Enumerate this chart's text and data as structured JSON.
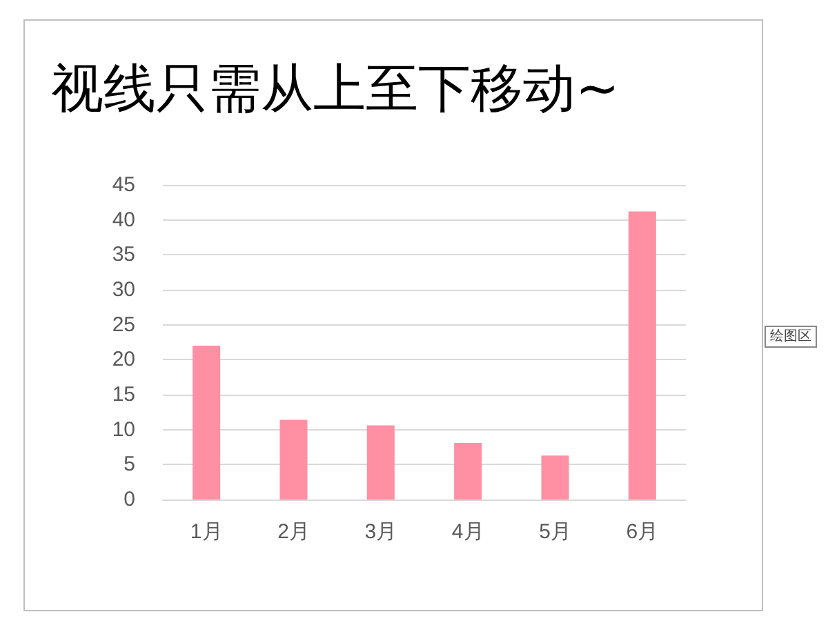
{
  "chart_data": {
    "type": "bar",
    "title": "视线只需从上至下移动~",
    "categories": [
      "1月",
      "2月",
      "3月",
      "4月",
      "5月",
      "6月"
    ],
    "values": [
      22.0,
      11.4,
      10.6,
      8.1,
      6.3,
      41.2
    ],
    "color": "#ff8fa3",
    "ylim": [
      0,
      45
    ],
    "yticks": [
      0,
      5,
      10,
      15,
      20,
      25,
      30,
      35,
      40,
      45
    ],
    "grid": "y",
    "annotations": [
      "绘图区"
    ]
  }
}
